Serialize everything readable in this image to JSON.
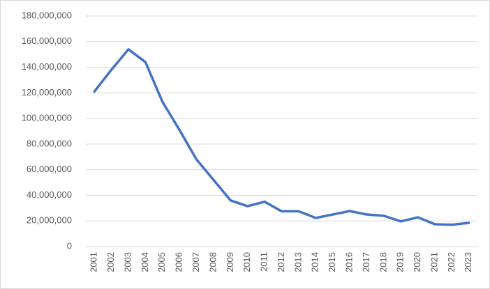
{
  "chart_data": {
    "type": "line",
    "categories": [
      "2001",
      "2002",
      "2003",
      "2004",
      "2005",
      "2006",
      "2007",
      "2008",
      "2009",
      "2010",
      "2011",
      "2012",
      "2013",
      "2014",
      "2015",
      "2016",
      "2017",
      "2018",
      "2019",
      "2020",
      "2021",
      "2022",
      "2023"
    ],
    "values": [
      121000000,
      138000000,
      154000000,
      144000000,
      113000000,
      91000000,
      68000000,
      52000000,
      36000000,
      31500000,
      35000000,
      27500000,
      27500000,
      22300000,
      25000000,
      27700000,
      25000000,
      24000000,
      19600000,
      22800000,
      17400000,
      17000000,
      18500000
    ],
    "color": "#4472c4",
    "ylim": [
      0,
      180000000
    ],
    "yticks": [
      0,
      {
        "value": 20000000,
        "label": "20,000,000"
      },
      {
        "value": 40000000,
        "label": "40,000,000"
      },
      {
        "value": 60000000,
        "label": "60,000,000"
      },
      {
        "value": 80000000,
        "label": "80,000,000"
      },
      {
        "value": 100000000,
        "label": "100,000,000"
      },
      {
        "value": 120000000,
        "label": "120,000,000"
      },
      {
        "value": 140000000,
        "label": "140,000,000"
      },
      {
        "value": 160000000,
        "label": "160,000,000"
      },
      {
        "value": 180000000,
        "label": "180,000,000"
      }
    ],
    "grid": true
  }
}
